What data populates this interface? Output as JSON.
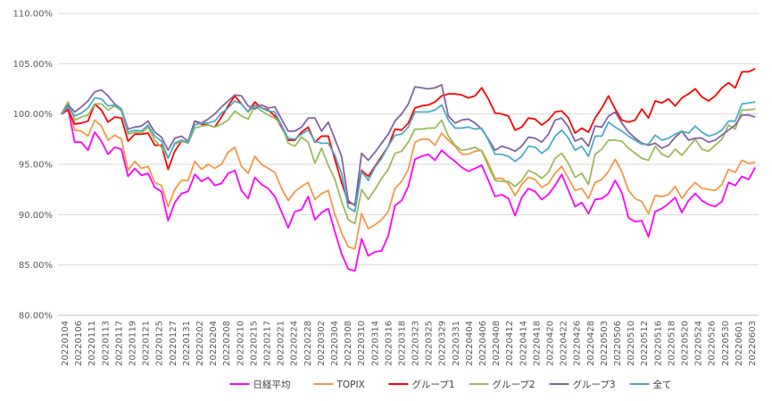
{
  "chart_data": {
    "type": "line",
    "title": "",
    "xlabel": "",
    "ylabel": "",
    "ylim": [
      80,
      110
    ],
    "y_ticks": [
      "80.00%",
      "85.00%",
      "90.00%",
      "95.00%",
      "100.00%",
      "105.00%",
      "110.00%"
    ],
    "y_tick_values": [
      80,
      85,
      90,
      95,
      100,
      105,
      110
    ],
    "grid": "horizontal",
    "legend_position": "bottom",
    "x_tick_labels": [
      "20220104",
      "20220106",
      "20220111",
      "20220113",
      "20220117",
      "20220119",
      "20220121",
      "20220125",
      "20220127",
      "20220131",
      "20220202",
      "20220204",
      "20220208",
      "20220210",
      "20220215",
      "20220217",
      "20220221",
      "20220224",
      "20220228",
      "20220302",
      "20220304",
      "20220308",
      "20220310",
      "20220314",
      "20220316",
      "20220318",
      "20220323",
      "20220325",
      "20220329",
      "20220331",
      "20220404",
      "20220406",
      "20220408",
      "20220412",
      "20220414",
      "20220418",
      "20220420",
      "20220422",
      "20220426",
      "20220428",
      "20220503",
      "20220506",
      "20220510",
      "20220512",
      "20220516",
      "20220518",
      "20220520",
      "20220524",
      "20220526",
      "20220530",
      "20220601",
      "20220603"
    ],
    "series": [
      {
        "name": "日経平均",
        "color": "#ff00ff",
        "values": [
          100.0,
          100.6,
          97.2,
          97.2,
          96.4,
          98.2,
          97.3,
          96.0,
          96.7,
          96.5,
          93.8,
          94.6,
          93.9,
          94.1,
          92.7,
          92.3,
          89.4,
          91.2,
          92.1,
          92.3,
          94.0,
          93.3,
          93.7,
          92.9,
          93.1,
          94.1,
          94.4,
          92.4,
          91.6,
          93.7,
          93.0,
          92.6,
          91.8,
          90.3,
          88.7,
          90.3,
          90.5,
          91.8,
          89.5,
          90.2,
          90.6,
          88.3,
          86.1,
          84.6,
          84.4,
          87.6,
          85.9,
          86.3,
          86.4,
          87.9,
          90.9,
          91.4,
          92.8,
          95.5,
          95.8,
          96.0,
          95.4,
          96.4,
          95.8,
          95.3,
          94.7,
          94.3,
          94.6,
          94.9,
          93.4,
          91.8,
          92.0,
          91.6,
          89.9,
          91.7,
          92.6,
          92.3,
          91.5,
          92.0,
          92.9,
          94.0,
          92.4,
          90.8,
          91.2,
          90.1,
          91.5,
          91.6,
          92.1,
          93.4,
          92.2,
          89.7,
          89.3,
          89.4,
          87.8,
          90.3,
          90.6,
          91.1,
          91.7,
          90.2,
          91.4,
          92.1,
          91.4,
          91.0,
          90.8,
          91.3,
          93.2,
          92.9,
          93.8,
          93.5,
          94.7
        ]
      },
      {
        "name": "TOPIX",
        "color": "#f79646",
        "values": [
          100.0,
          100.9,
          98.4,
          98.3,
          97.8,
          99.4,
          98.8,
          97.4,
          97.9,
          97.5,
          94.4,
          95.3,
          94.6,
          94.8,
          93.2,
          92.9,
          90.8,
          92.5,
          93.4,
          93.4,
          95.3,
          94.5,
          95.0,
          94.6,
          95.0,
          96.2,
          96.7,
          94.8,
          94.1,
          95.8,
          95.0,
          94.6,
          94.2,
          92.6,
          91.4,
          92.3,
          92.8,
          93.2,
          91.5,
          92.1,
          92.4,
          90.0,
          88.2,
          86.8,
          86.6,
          90.1,
          88.6,
          89.0,
          89.5,
          90.3,
          92.6,
          93.3,
          94.5,
          97.2,
          97.5,
          97.5,
          96.9,
          98.1,
          97.4,
          96.8,
          96.0,
          96.0,
          96.3,
          96.4,
          95.1,
          93.6,
          93.6,
          93.1,
          91.9,
          93.0,
          93.7,
          93.5,
          92.7,
          93.1,
          94.1,
          94.8,
          93.6,
          92.4,
          92.6,
          91.6,
          93.2,
          93.5,
          94.3,
          95.5,
          94.3,
          92.4,
          91.6,
          91.3,
          90.1,
          91.9,
          91.8,
          92.0,
          92.8,
          91.6,
          92.5,
          93.2,
          92.6,
          92.5,
          92.4,
          93.0,
          94.5,
          94.2,
          95.4,
          95.1,
          95.2
        ]
      },
      {
        "name": "グループ1",
        "color": "#ff0000",
        "values": [
          100.0,
          100.4,
          99.0,
          99.1,
          99.3,
          101.0,
          100.4,
          99.2,
          99.7,
          99.6,
          97.3,
          98.0,
          98.0,
          98.1,
          96.9,
          96.9,
          94.5,
          96.3,
          97.3,
          97.2,
          99.3,
          99.0,
          98.9,
          98.7,
          99.7,
          100.8,
          101.8,
          101.0,
          100.2,
          101.2,
          100.6,
          100.4,
          99.8,
          98.7,
          97.4,
          97.4,
          98.2,
          98.7,
          97.2,
          97.8,
          97.8,
          95.5,
          93.2,
          91.2,
          91.0,
          94.4,
          93.8,
          94.8,
          95.8,
          96.8,
          98.5,
          98.4,
          99.1,
          100.6,
          100.8,
          100.9,
          101.2,
          101.8,
          102.0,
          102.0,
          101.9,
          101.6,
          101.8,
          102.6,
          101.5,
          100.1,
          100.0,
          99.8,
          98.4,
          98.7,
          99.6,
          99.5,
          98.9,
          99.4,
          100.2,
          100.3,
          99.6,
          98.1,
          98.6,
          98.2,
          99.6,
          100.6,
          101.8,
          100.5,
          99.4,
          99.2,
          99.4,
          100.5,
          99.6,
          101.3,
          101.1,
          101.5,
          100.8,
          101.6,
          102.0,
          102.5,
          101.7,
          101.3,
          101.8,
          102.6,
          103.1,
          102.6,
          104.2,
          104.2,
          104.5
        ]
      },
      {
        "name": "グループ2",
        "color": "#9bbb59",
        "values": [
          100.0,
          101.2,
          99.4,
          99.7,
          99.9,
          101.0,
          101.0,
          100.4,
          100.8,
          100.3,
          98.0,
          98.2,
          98.1,
          98.7,
          97.4,
          96.7,
          95.7,
          97.0,
          97.3,
          97.1,
          98.6,
          98.8,
          98.9,
          98.7,
          99.0,
          99.4,
          100.3,
          99.8,
          99.5,
          100.8,
          100.3,
          99.9,
          99.6,
          98.9,
          97.1,
          96.8,
          97.7,
          97.2,
          95.1,
          96.6,
          94.9,
          93.5,
          91.3,
          89.5,
          89.1,
          92.5,
          91.5,
          92.5,
          93.6,
          94.5,
          96.1,
          96.3,
          97.2,
          98.5,
          98.5,
          98.6,
          98.6,
          99.4,
          97.8,
          96.9,
          96.4,
          96.5,
          96.7,
          96.3,
          94.8,
          93.4,
          93.3,
          93.3,
          92.8,
          93.4,
          94.4,
          94.1,
          93.6,
          94.2,
          95.6,
          96.1,
          95.1,
          93.7,
          94.1,
          93.0,
          96.0,
          96.5,
          97.4,
          97.4,
          97.3,
          96.6,
          96.1,
          95.6,
          95.4,
          96.8,
          96.0,
          95.7,
          96.5,
          95.9,
          96.7,
          97.5,
          96.5,
          96.3,
          96.9,
          97.5,
          98.9,
          98.5,
          100.4,
          100.4,
          100.5
        ]
      },
      {
        "name": "グループ3",
        "color": "#8064a2",
        "values": [
          100.0,
          100.9,
          100.2,
          100.7,
          101.3,
          102.2,
          102.4,
          101.8,
          101.0,
          100.5,
          98.5,
          98.7,
          98.8,
          99.3,
          98.2,
          97.7,
          96.4,
          97.6,
          97.8,
          97.3,
          99.3,
          99.1,
          99.5,
          100.0,
          100.7,
          101.3,
          101.9,
          101.8,
          100.8,
          100.5,
          100.9,
          100.6,
          100.7,
          99.5,
          98.3,
          98.3,
          98.7,
          99.6,
          99.6,
          98.3,
          99.2,
          97.5,
          95.8,
          91.4,
          90.9,
          96.1,
          95.4,
          96.2,
          97.1,
          98.0,
          99.3,
          100.0,
          101.0,
          102.7,
          102.6,
          102.5,
          102.6,
          102.9,
          99.8,
          99.1,
          99.4,
          99.5,
          99.1,
          98.5,
          97.5,
          96.4,
          96.8,
          96.6,
          96.3,
          96.8,
          97.7,
          97.6,
          97.2,
          98.0,
          99.4,
          99.6,
          98.7,
          97.3,
          97.6,
          96.8,
          98.8,
          98.7,
          99.8,
          100.2,
          99.1,
          98.2,
          97.6,
          97.1,
          96.9,
          97.1,
          96.6,
          96.9,
          97.7,
          98.3,
          97.4,
          97.6,
          97.6,
          97.2,
          97.4,
          97.9,
          98.4,
          98.9,
          99.9,
          99.9,
          99.7
        ]
      },
      {
        "name": "全て",
        "color": "#4bacc6",
        "values": [
          100.0,
          100.7,
          99.8,
          100.1,
          100.6,
          101.6,
          101.5,
          100.8,
          100.9,
          100.5,
          98.2,
          98.4,
          98.3,
          98.9,
          97.8,
          97.3,
          95.6,
          97.1,
          97.4,
          97.2,
          98.9,
          99.1,
          99.1,
          99.3,
          100.1,
          100.6,
          101.3,
          101.0,
          100.2,
          100.9,
          100.6,
          100.3,
          100.2,
          98.9,
          97.6,
          97.5,
          98.0,
          98.4,
          97.3,
          97.1,
          97.1,
          95.9,
          94.1,
          90.7,
          90.3,
          94.3,
          93.4,
          94.7,
          95.6,
          96.8,
          97.9,
          98.0,
          98.7,
          100.2,
          100.2,
          100.2,
          100.4,
          100.9,
          99.4,
          98.6,
          98.6,
          98.7,
          98.5,
          98.6,
          97.4,
          96.0,
          96.0,
          95.8,
          95.3,
          95.8,
          96.8,
          96.7,
          96.1,
          96.6,
          97.8,
          98.4,
          97.6,
          96.4,
          96.8,
          95.8,
          97.8,
          97.8,
          99.2,
          98.7,
          98.3,
          97.8,
          97.4,
          97.0,
          97.0,
          97.9,
          97.4,
          97.6,
          98.0,
          98.3,
          98.1,
          98.8,
          98.2,
          97.8,
          98.0,
          98.4,
          99.3,
          99.3,
          101.0,
          101.1,
          101.2
        ]
      }
    ]
  }
}
